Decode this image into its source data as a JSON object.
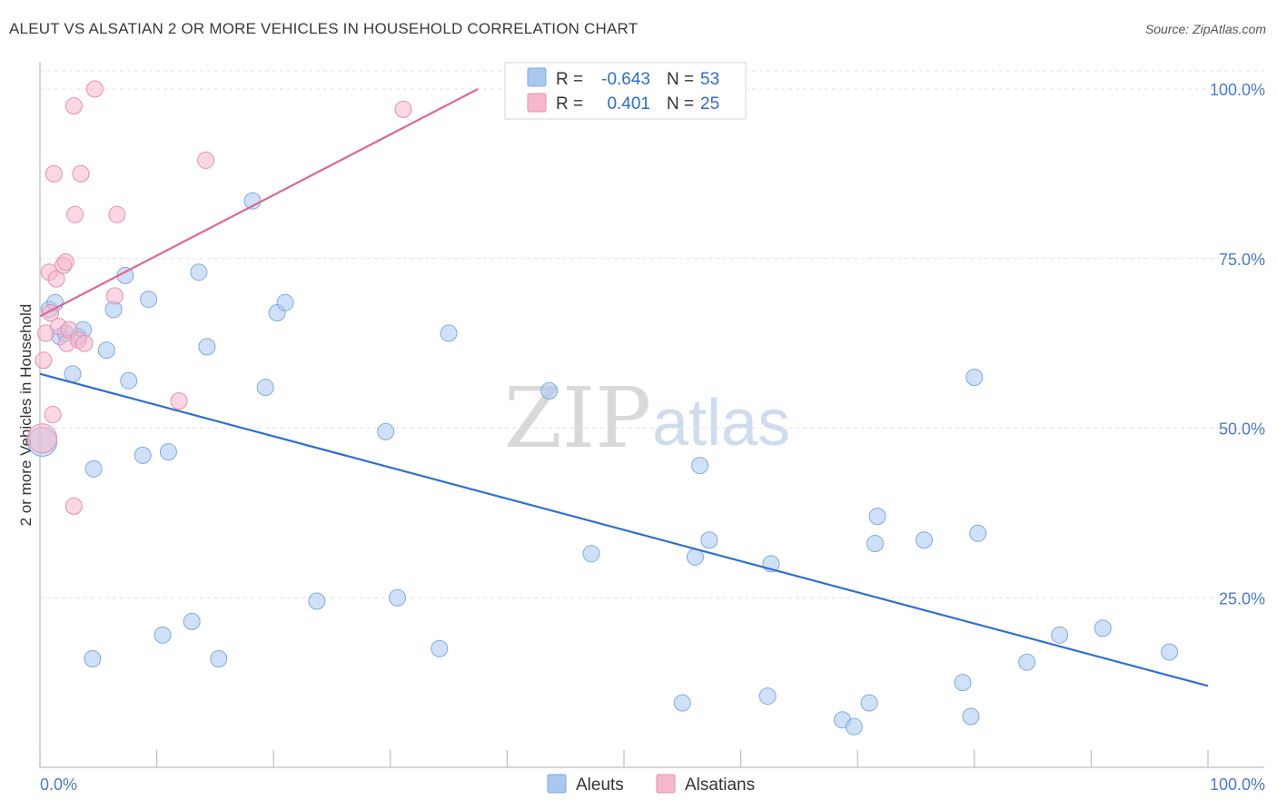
{
  "header": {
    "title": "ALEUT VS ALSATIAN 2 OR MORE VEHICLES IN HOUSEHOLD CORRELATION CHART",
    "source": "Source: ZipAtlas.com"
  },
  "watermark": {
    "zip": "ZIP",
    "atlas": "atlas"
  },
  "stats_legend": {
    "rows": [
      {
        "r_label": "R =",
        "r_value": "-0.643",
        "n_label": "N =",
        "n_value": "53",
        "color": "#a9c8f0"
      },
      {
        "r_label": "R =",
        "r_value": "0.401",
        "n_label": "N =",
        "n_value": "25",
        "color": "#f5b8cc"
      }
    ]
  },
  "chart_data": {
    "type": "scatter",
    "title": "ALEUT VS ALSATIAN 2 OR MORE VEHICLES IN HOUSEHOLD CORRELATION CHART",
    "xlabel": "",
    "ylabel": "2 or more Vehicles in Household",
    "xlim": [
      0,
      100
    ],
    "ylim": [
      0,
      100
    ],
    "x_tick_labels": [
      "0.0%",
      "100.0%"
    ],
    "y_ticks": [
      {
        "value": 25,
        "label": "25.0%"
      },
      {
        "value": 50,
        "label": "50.0%"
      },
      {
        "value": 75,
        "label": "75.0%"
      },
      {
        "value": 100,
        "label": "100.0%"
      }
    ],
    "legend_position": "bottom-center",
    "series": [
      {
        "name": "Aleuts",
        "color": "#a9c8f0",
        "stroke": "#7fa9e3",
        "trend": {
          "x": [
            0,
            100
          ],
          "y": [
            58,
            12
          ],
          "color": "#2f6fd0"
        },
        "points": [
          [
            0.2,
            48.0
          ],
          [
            0.8,
            67.5
          ],
          [
            1.3,
            68.5
          ],
          [
            1.7,
            63.5
          ],
          [
            2.2,
            64.0
          ],
          [
            2.8,
            58.0
          ],
          [
            3.3,
            63.5
          ],
          [
            3.7,
            64.5
          ],
          [
            4.6,
            44.0
          ],
          [
            4.5,
            16.0
          ],
          [
            5.7,
            61.5
          ],
          [
            6.3,
            67.5
          ],
          [
            7.3,
            72.5
          ],
          [
            7.6,
            57.0
          ],
          [
            8.8,
            46.0
          ],
          [
            9.3,
            69.0
          ],
          [
            10.5,
            19.5
          ],
          [
            11.0,
            46.5
          ],
          [
            13.0,
            21.5
          ],
          [
            13.6,
            73.0
          ],
          [
            14.3,
            62.0
          ],
          [
            15.3,
            16.0
          ],
          [
            18.2,
            83.5
          ],
          [
            19.3,
            56.0
          ],
          [
            20.3,
            67.0
          ],
          [
            21.0,
            68.5
          ],
          [
            23.7,
            24.5
          ],
          [
            29.6,
            49.5
          ],
          [
            30.6,
            25.0
          ],
          [
            34.2,
            17.5
          ],
          [
            35.0,
            64.0
          ],
          [
            43.6,
            55.5
          ],
          [
            47.2,
            31.5
          ],
          [
            55.0,
            9.5
          ],
          [
            56.1,
            31.0
          ],
          [
            56.5,
            44.5
          ],
          [
            57.3,
            33.5
          ],
          [
            62.3,
            10.5
          ],
          [
            62.6,
            30.0
          ],
          [
            68.7,
            7.0
          ],
          [
            69.7,
            6.0
          ],
          [
            71.0,
            9.5
          ],
          [
            71.5,
            33.0
          ],
          [
            71.7,
            37.0
          ],
          [
            75.7,
            33.5
          ],
          [
            79.0,
            12.5
          ],
          [
            79.7,
            7.5
          ],
          [
            80.0,
            57.5
          ],
          [
            80.3,
            34.5
          ],
          [
            84.5,
            15.5
          ],
          [
            87.3,
            19.5
          ],
          [
            91.0,
            20.5
          ],
          [
            96.7,
            17.0
          ]
        ]
      },
      {
        "name": "Alsatians",
        "color": "#f5b8cc",
        "stroke": "#e58fae",
        "trend": {
          "x": [
            0,
            37.5
          ],
          "y": [
            66.5,
            100
          ],
          "color": "#e0678f"
        },
        "points": [
          [
            0.2,
            48.5
          ],
          [
            0.3,
            60.0
          ],
          [
            0.5,
            64.0
          ],
          [
            0.8,
            73.0
          ],
          [
            0.9,
            67.0
          ],
          [
            1.1,
            52.0
          ],
          [
            1.2,
            87.5
          ],
          [
            1.4,
            72.0
          ],
          [
            1.6,
            65.0
          ],
          [
            2.0,
            74.0
          ],
          [
            2.2,
            74.5
          ],
          [
            2.3,
            62.5
          ],
          [
            2.5,
            64.5
          ],
          [
            2.9,
            97.5
          ],
          [
            2.9,
            38.5
          ],
          [
            3.0,
            81.5
          ],
          [
            3.3,
            63.0
          ],
          [
            3.5,
            87.5
          ],
          [
            3.8,
            62.5
          ],
          [
            4.7,
            100.0
          ],
          [
            6.4,
            69.5
          ],
          [
            6.6,
            81.5
          ],
          [
            11.9,
            54.0
          ],
          [
            14.2,
            89.5
          ],
          [
            31.1,
            97.0
          ]
        ]
      }
    ]
  },
  "bottom_legend": {
    "items": [
      "Aleuts",
      "Alsatians"
    ]
  }
}
